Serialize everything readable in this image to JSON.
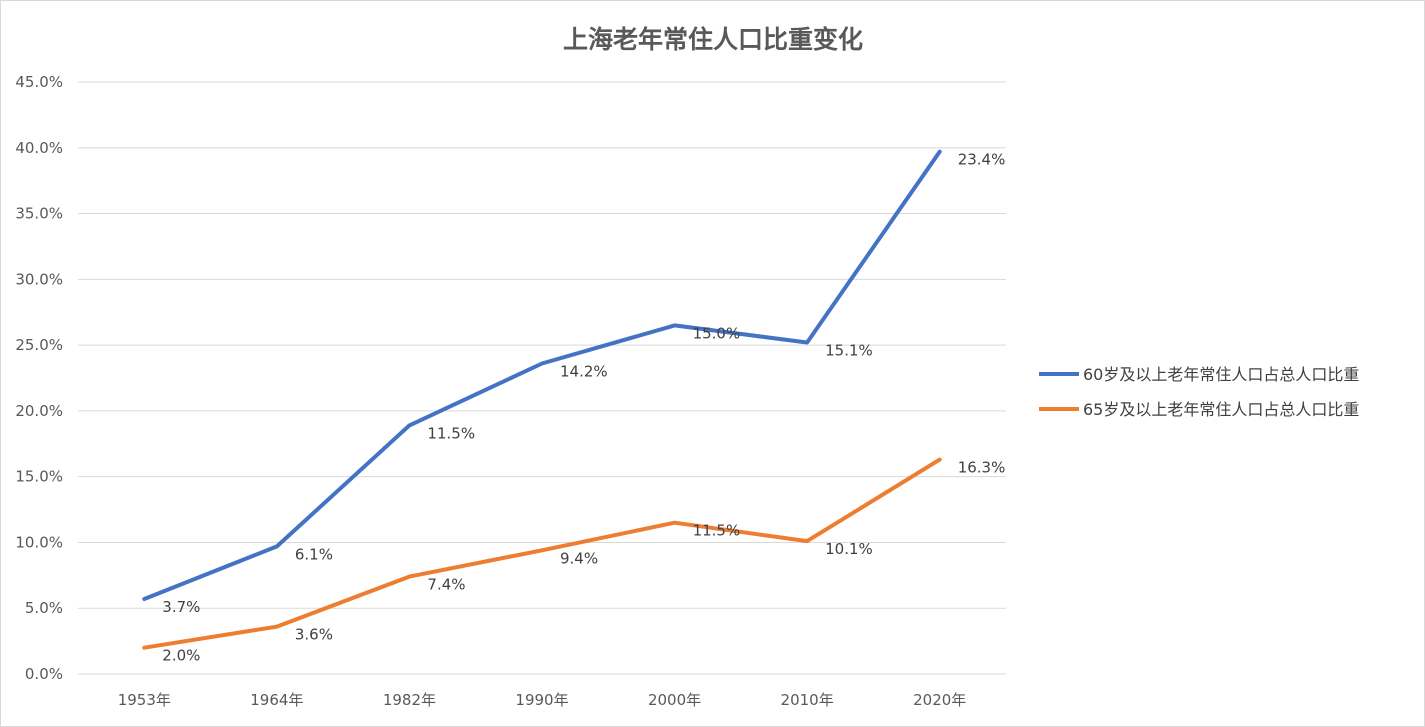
{
  "chart_data": {
    "type": "line",
    "title": "上海老年常住人口比重变化",
    "categories": [
      "1953年",
      "1964年",
      "1982年",
      "1990年",
      "2000年",
      "2010年",
      "2020年"
    ],
    "ylim": [
      0,
      45
    ],
    "yticks": [
      "0.0%",
      "5.0%",
      "10.0%",
      "15.0%",
      "20.0%",
      "25.0%",
      "30.0%",
      "35.0%",
      "40.0%",
      "45.0%"
    ],
    "grid": true,
    "legend_position": "right",
    "series": [
      {
        "name": "60岁及以上老年常住人口占总人口比重",
        "color": "#4472C4",
        "values": [
          5.7,
          9.7,
          18.9,
          23.6,
          26.5,
          25.2,
          39.7
        ],
        "labels": [
          "3.7%",
          "6.1%",
          "11.5%",
          "14.2%",
          "15.0%",
          "15.1%",
          "23.4%"
        ]
      },
      {
        "name": "65岁及以上老年常住人口占总人口比重",
        "color": "#ED7D31",
        "values": [
          2.0,
          3.6,
          7.4,
          9.4,
          11.5,
          10.1,
          16.3
        ],
        "labels": [
          "2.0%",
          "3.6%",
          "7.4%",
          "9.4%",
          "11.5%",
          "10.1%",
          "16.3%"
        ]
      }
    ]
  }
}
